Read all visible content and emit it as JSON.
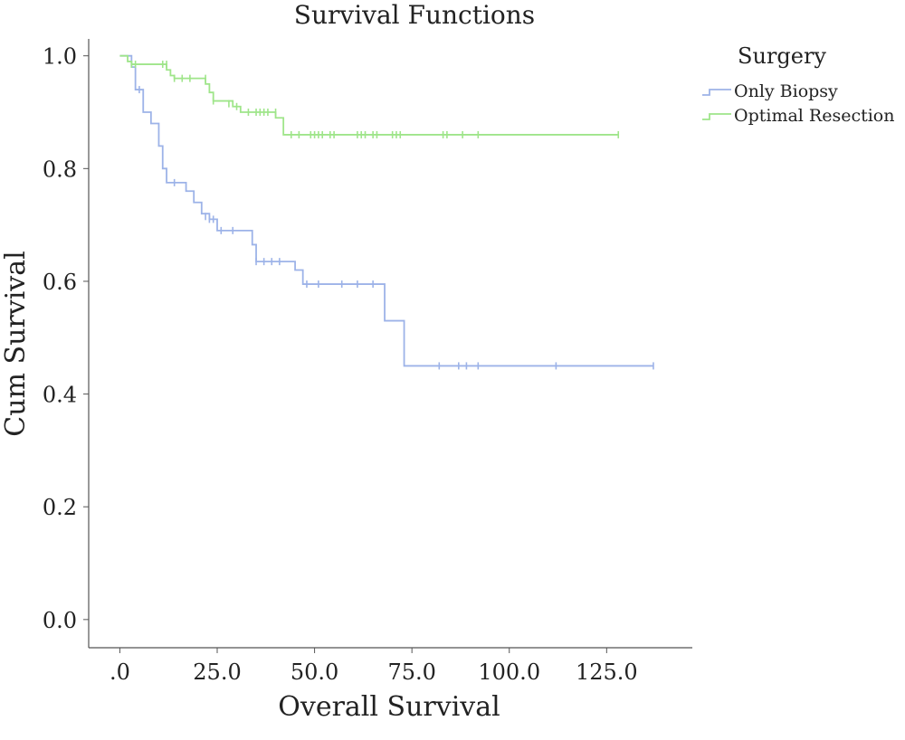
{
  "chart_data": {
    "type": "line",
    "subtype": "kaplan-meier step",
    "title": "Survival Functions",
    "xlabel": "Overall Survival",
    "ylabel": "Cum Survival",
    "xlim": [
      -8,
      147
    ],
    "ylim": [
      -0.05,
      1.03
    ],
    "xticks": [
      0,
      25,
      50,
      75,
      100,
      125
    ],
    "xtick_labels": [
      ".0",
      "25.0",
      "50.0",
      "75.0",
      "100.0",
      "125.0"
    ],
    "yticks": [
      0.0,
      0.2,
      0.4,
      0.6,
      0.8,
      1.0
    ],
    "ytick_labels": [
      "0.0",
      "0.2",
      "0.4",
      "0.6",
      "0.8",
      "1.0"
    ],
    "grid": false,
    "legend_title": "Surgery",
    "legend_position": "top-right",
    "series": [
      {
        "name": "Only Biopsy",
        "color": "#9db3e8",
        "steps": [
          [
            0,
            1.0
          ],
          [
            3,
            0.98
          ],
          [
            4,
            0.94
          ],
          [
            6,
            0.9
          ],
          [
            8,
            0.88
          ],
          [
            10,
            0.84
          ],
          [
            11,
            0.8
          ],
          [
            12,
            0.775
          ],
          [
            17,
            0.76
          ],
          [
            19,
            0.74
          ],
          [
            21,
            0.72
          ],
          [
            23,
            0.71
          ],
          [
            25,
            0.69
          ],
          [
            34,
            0.665
          ],
          [
            35,
            0.635
          ],
          [
            45,
            0.62
          ],
          [
            47,
            0.595
          ],
          [
            68,
            0.53
          ],
          [
            73,
            0.45
          ],
          [
            137,
            0.45
          ]
        ],
        "censored": [
          [
            5,
            0.94
          ],
          [
            14,
            0.775
          ],
          [
            22,
            0.715
          ],
          [
            23,
            0.71
          ],
          [
            24,
            0.71
          ],
          [
            26,
            0.69
          ],
          [
            29,
            0.69
          ],
          [
            35,
            0.635
          ],
          [
            37,
            0.635
          ],
          [
            39,
            0.635
          ],
          [
            41,
            0.635
          ],
          [
            48,
            0.595
          ],
          [
            51,
            0.595
          ],
          [
            57,
            0.595
          ],
          [
            61,
            0.595
          ],
          [
            65,
            0.595
          ],
          [
            82,
            0.45
          ],
          [
            87,
            0.45
          ],
          [
            89,
            0.45
          ],
          [
            92,
            0.45
          ],
          [
            112,
            0.45
          ],
          [
            137,
            0.45
          ]
        ]
      },
      {
        "name": "Optimal Resection",
        "color": "#9fe58a",
        "steps": [
          [
            0,
            1.0
          ],
          [
            2,
            0.99
          ],
          [
            3,
            0.985
          ],
          [
            12,
            0.975
          ],
          [
            13,
            0.965
          ],
          [
            14,
            0.96
          ],
          [
            22,
            0.95
          ],
          [
            23,
            0.935
          ],
          [
            24,
            0.92
          ],
          [
            29,
            0.91
          ],
          [
            31,
            0.9
          ],
          [
            40,
            0.89
          ],
          [
            42,
            0.86
          ],
          [
            128,
            0.86
          ]
        ],
        "censored": [
          [
            3,
            0.985
          ],
          [
            4,
            0.985
          ],
          [
            11,
            0.985
          ],
          [
            12,
            0.985
          ],
          [
            14,
            0.96
          ],
          [
            16,
            0.96
          ],
          [
            18,
            0.96
          ],
          [
            22,
            0.96
          ],
          [
            24,
            0.92
          ],
          [
            28,
            0.915
          ],
          [
            30,
            0.91
          ],
          [
            33,
            0.9
          ],
          [
            35,
            0.9
          ],
          [
            36,
            0.9
          ],
          [
            37,
            0.9
          ],
          [
            38,
            0.9
          ],
          [
            40,
            0.9
          ],
          [
            44,
            0.86
          ],
          [
            46,
            0.86
          ],
          [
            49,
            0.86
          ],
          [
            50,
            0.86
          ],
          [
            51,
            0.86
          ],
          [
            52,
            0.86
          ],
          [
            54,
            0.86
          ],
          [
            55,
            0.86
          ],
          [
            61,
            0.86
          ],
          [
            62,
            0.86
          ],
          [
            63,
            0.86
          ],
          [
            65,
            0.86
          ],
          [
            66,
            0.86
          ],
          [
            70,
            0.86
          ],
          [
            71,
            0.86
          ],
          [
            72,
            0.86
          ],
          [
            83,
            0.86
          ],
          [
            84,
            0.86
          ],
          [
            88,
            0.86
          ],
          [
            92,
            0.86
          ],
          [
            128,
            0.86
          ]
        ]
      }
    ]
  }
}
